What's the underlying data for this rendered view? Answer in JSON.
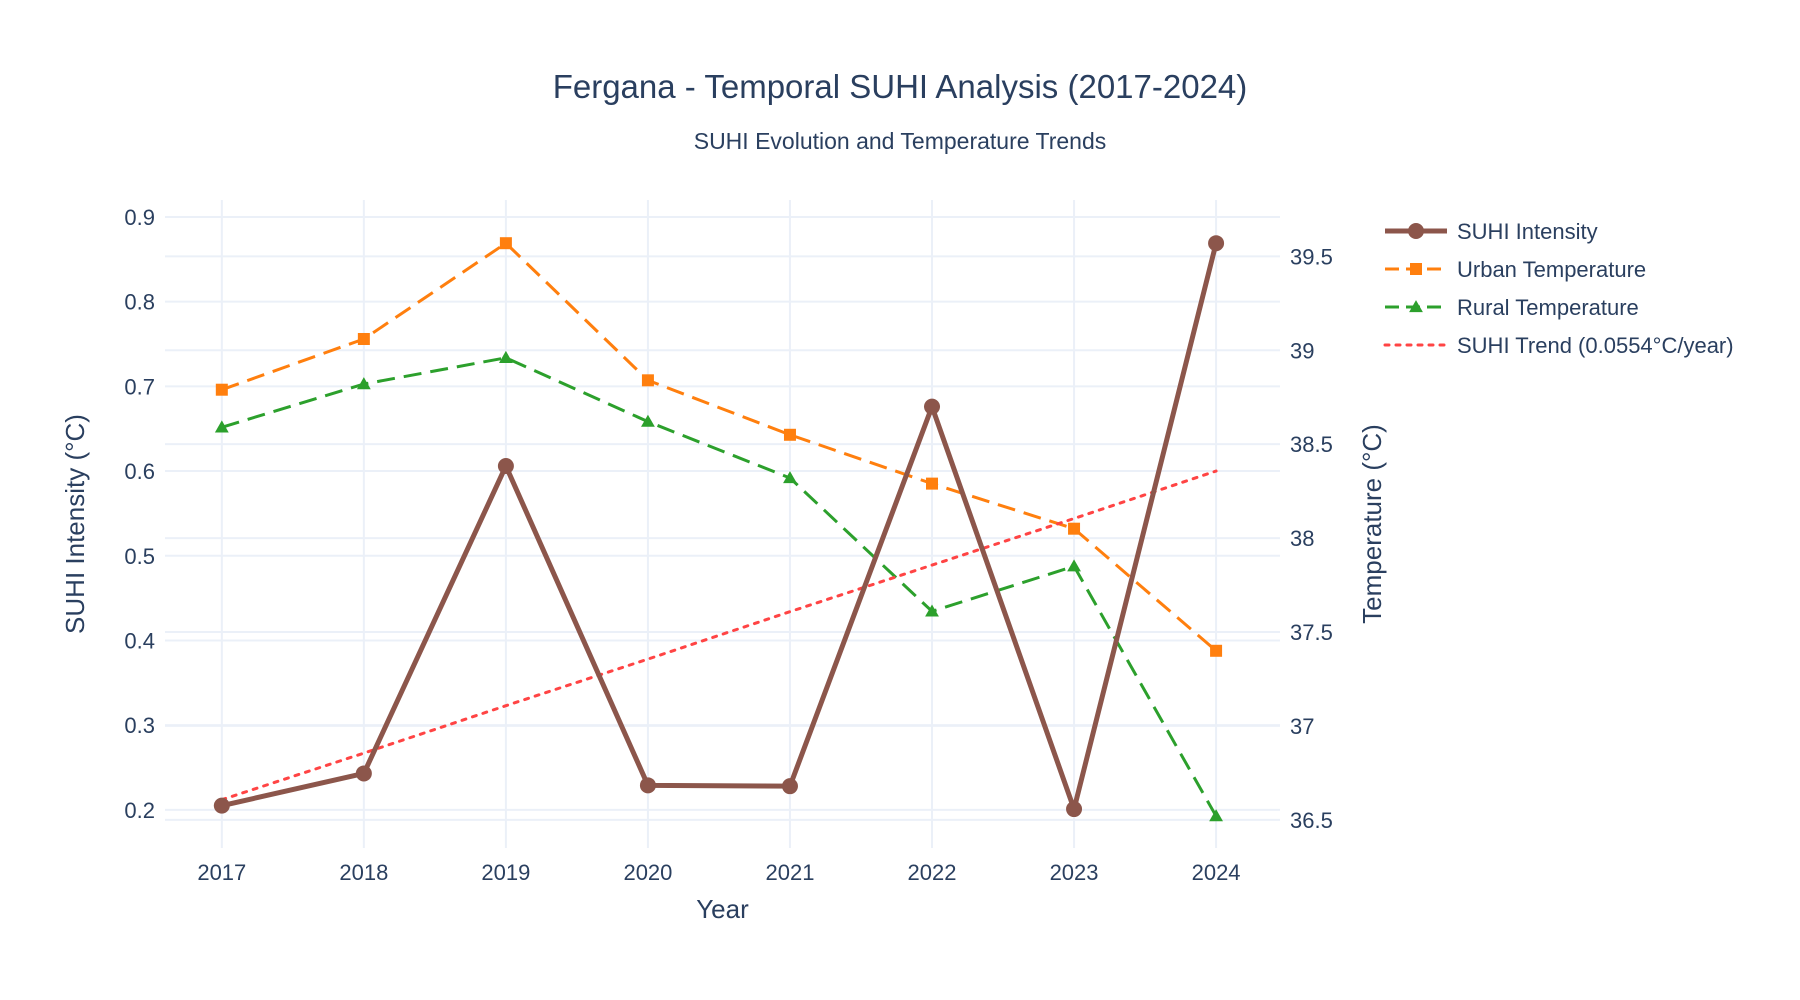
{
  "title": "Fergana - Temporal SUHI Analysis (2017-2024)",
  "subtitle": "SUHI Evolution and Temperature Trends",
  "chart_data": {
    "type": "line",
    "title": "Fergana - Temporal SUHI Analysis (2017-2024)",
    "subtitle": "SUHI Evolution and Temperature Trends",
    "xlabel": "Year",
    "ylabel": "SUHI Intensity (°C)",
    "y2label": "Temperature (°C)",
    "x": [
      2017,
      2018,
      2019,
      2020,
      2021,
      2022,
      2023,
      2024
    ],
    "xlim": [
      2016.6,
      2024.45
    ],
    "ylim": [
      0.155,
      0.92
    ],
    "y2lim": [
      36.35,
      39.8
    ],
    "yticks": [
      0.2,
      0.3,
      0.4,
      0.5,
      0.6,
      0.7,
      0.8,
      0.9
    ],
    "y2ticks": [
      36.5,
      37,
      37.5,
      38,
      38.5,
      39,
      39.5
    ],
    "grid": true,
    "legend_position": "right",
    "series": [
      {
        "name": "SUHI Intensity",
        "axis": "y",
        "color": "#8c564b",
        "dash": "solid",
        "marker": "circle",
        "width": 5,
        "values": [
          0.205,
          0.243,
          0.606,
          0.229,
          0.228,
          0.676,
          0.201,
          0.869
        ]
      },
      {
        "name": "Urban Temperature",
        "axis": "y2",
        "color": "#ff7f0e",
        "dash": "dash",
        "marker": "square",
        "width": 3,
        "values": [
          38.79,
          39.06,
          39.57,
          38.84,
          38.55,
          38.29,
          38.05,
          37.4
        ]
      },
      {
        "name": "Rural Temperature",
        "axis": "y2",
        "color": "#2ca02c",
        "dash": "dash",
        "marker": "triangle",
        "width": 3,
        "values": [
          38.59,
          38.82,
          38.96,
          38.62,
          38.32,
          37.61,
          37.85,
          36.52
        ]
      },
      {
        "name": "SUHI Trend (0.0554°C/year)",
        "axis": "y",
        "color": "#ff4444",
        "dash": "dot",
        "marker": "none",
        "width": 3,
        "values": [
          0.212,
          0.267,
          0.323,
          0.378,
          0.434,
          0.489,
          0.544,
          0.6
        ]
      }
    ]
  }
}
